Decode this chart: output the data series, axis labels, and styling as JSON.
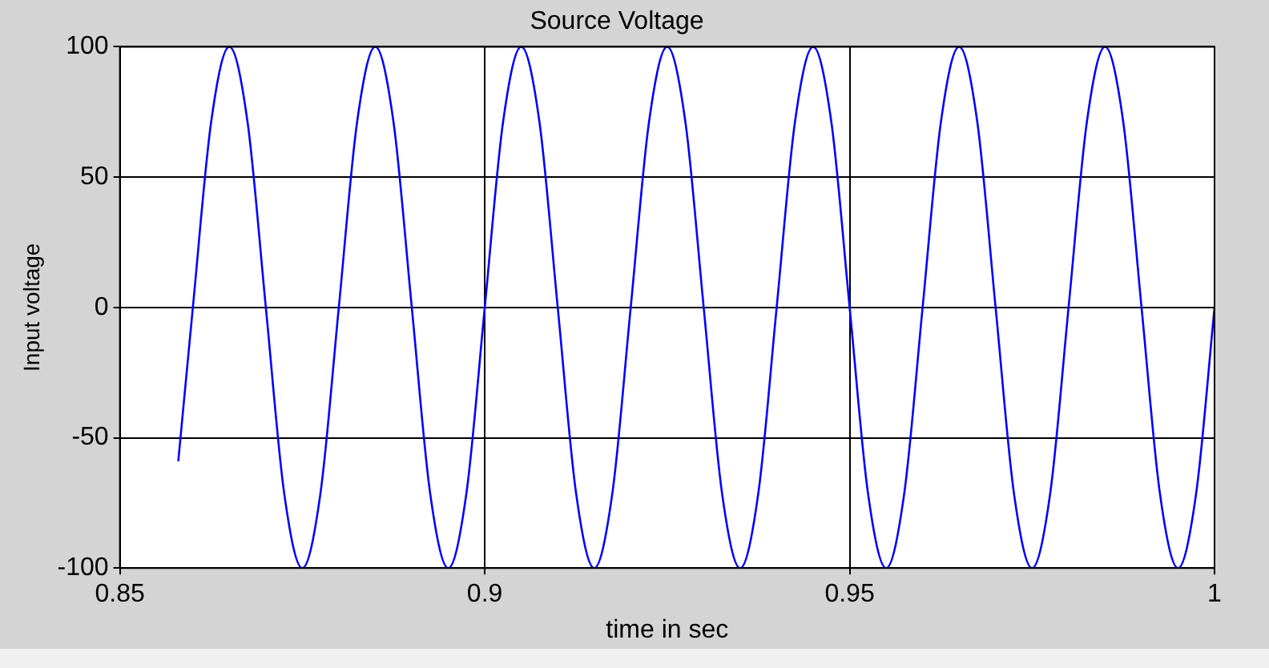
{
  "chart_data": {
    "type": "line",
    "title": "Source Voltage",
    "xlabel": "time in sec",
    "ylabel": "Input voltage",
    "x": [
      0.858,
      0.86,
      0.8625,
      0.865,
      0.8675,
      0.87,
      0.8725,
      0.875,
      0.8775,
      0.88,
      0.8825,
      0.885,
      0.8875,
      0.89,
      0.8925,
      0.895,
      0.8975,
      0.9,
      0.9025,
      0.905,
      0.9075,
      0.91,
      0.9125,
      0.915,
      0.9175,
      0.92,
      0.9225,
      0.925,
      0.9275,
      0.93,
      0.9325,
      0.935,
      0.9375,
      0.94,
      0.9425,
      0.945,
      0.9475,
      0.95,
      0.9525,
      0.955,
      0.9575,
      0.96,
      0.9625,
      0.965,
      0.9675,
      0.97,
      0.9725,
      0.975,
      0.9775,
      0.98,
      0.9825,
      0.985,
      0.9875,
      0.99,
      0.9925,
      0.995,
      0.9975,
      1.0
    ],
    "series": [
      {
        "color": "#0000ff",
        "values": [
          -59,
          0,
          71,
          100,
          71,
          0,
          -71,
          -100,
          -71,
          0,
          71,
          100,
          71,
          0,
          -71,
          -100,
          -71,
          0,
          71,
          100,
          71,
          0,
          -71,
          -100,
          -71,
          0,
          71,
          100,
          71,
          0,
          -71,
          -100,
          -71,
          0,
          71,
          100,
          71,
          0,
          -71,
          -100,
          -71,
          0,
          71,
          100,
          71,
          0,
          -71,
          -100,
          -71,
          0,
          71,
          100,
          71,
          0,
          -71,
          -100,
          -71,
          0
        ]
      }
    ],
    "xlim": [
      0.85,
      1
    ],
    "xticks": [
      0.85,
      0.9,
      0.95,
      1
    ],
    "ylim": [
      -100,
      100
    ],
    "yticks": [
      -100,
      -50,
      0,
      50,
      100
    ],
    "grid": true,
    "legend": false,
    "marker": "none",
    "line_style": "solid"
  }
}
